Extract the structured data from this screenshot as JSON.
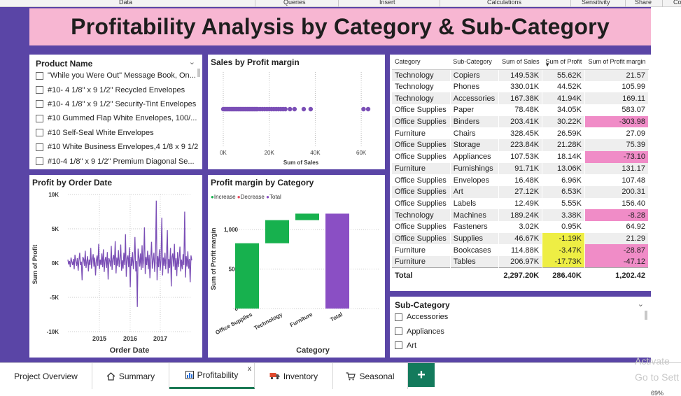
{
  "ribbon": {
    "items": [
      "Data",
      "Queries",
      "Insert",
      "Calculations",
      "Sensitivity",
      "Share",
      "Co"
    ]
  },
  "page": {
    "title": "Profitability Analysis by Category & Sub-Category"
  },
  "product_slicer": {
    "title": "Product Name",
    "items": [
      "\"While you Were Out\" Message Book, On...",
      "#10- 4 1/8\" x 9 1/2\" Recycled Envelopes",
      "#10- 4 1/8\" x 9 1/2\" Security-Tint Envelopes",
      "#10 Gummed Flap White Envelopes, 100/...",
      "#10 Self-Seal White Envelopes",
      "#10 White Business Envelopes,4 1/8 x 9 1/2",
      "#10-4 1/8\" x 9 1/2\" Premium Diagonal Se..."
    ]
  },
  "scatter_chart": {
    "title": "Sales by Profit margin",
    "xlabel": "Sum of Sales",
    "x_ticks": [
      "0K",
      "20K",
      "40K",
      "60K"
    ],
    "color": "#7b4fb6"
  },
  "line_chart": {
    "title": "Profit by Order Date",
    "xlabel": "Order Date",
    "ylabel": "Sum of Profit",
    "y_ticks": [
      "10K",
      "5K",
      "0K",
      "-5K",
      "-10K"
    ],
    "x_ticks": [
      "2015",
      "2016",
      "2017"
    ],
    "color": "#7b4fb6"
  },
  "waterfall_chart": {
    "title": "Profit margin by Category",
    "xlabel": "Category",
    "ylabel": "Sum of Profit margin",
    "y_ticks": [
      "0",
      "500",
      "1,000"
    ],
    "legend": {
      "increase": "Increase",
      "decrease": "Decrease",
      "total": "Total"
    },
    "colors": {
      "increase": "#17b14e",
      "decrease": "#e8485a",
      "total": "#8a4fc4"
    }
  },
  "table": {
    "headers": [
      "Category",
      "Sub-Category",
      "Sum of Sales",
      "Sum of Profit",
      "Sum of Profit margin"
    ],
    "rows": [
      [
        "Technology",
        "Copiers",
        "149.53K",
        "55.62K",
        "21.57"
      ],
      [
        "Technology",
        "Phones",
        "330.01K",
        "44.52K",
        "105.99"
      ],
      [
        "Technology",
        "Accessories",
        "167.38K",
        "41.94K",
        "169.11"
      ],
      [
        "Office Supplies",
        "Paper",
        "78.48K",
        "34.05K",
        "583.07"
      ],
      [
        "Office Supplies",
        "Binders",
        "203.41K",
        "30.22K",
        "-303.98"
      ],
      [
        "Furniture",
        "Chairs",
        "328.45K",
        "26.59K",
        "27.09"
      ],
      [
        "Office Supplies",
        "Storage",
        "223.84K",
        "21.28K",
        "75.39"
      ],
      [
        "Office Supplies",
        "Appliances",
        "107.53K",
        "18.14K",
        "-73.10"
      ],
      [
        "Furniture",
        "Furnishings",
        "91.71K",
        "13.06K",
        "131.17"
      ],
      [
        "Office Supplies",
        "Envelopes",
        "16.48K",
        "6.96K",
        "107.48"
      ],
      [
        "Office Supplies",
        "Art",
        "27.12K",
        "6.53K",
        "200.31"
      ],
      [
        "Office Supplies",
        "Labels",
        "12.49K",
        "5.55K",
        "156.40"
      ],
      [
        "Technology",
        "Machines",
        "189.24K",
        "3.38K",
        "-8.28"
      ],
      [
        "Office Supplies",
        "Fasteners",
        "3.02K",
        "0.95K",
        "64.92"
      ],
      [
        "Office Supplies",
        "Supplies",
        "46.67K",
        "-1.19K",
        "21.29"
      ],
      [
        "Furniture",
        "Bookcases",
        "114.88K",
        "-3.47K",
        "-28.87"
      ],
      [
        "Furniture",
        "Tables",
        "206.97K",
        "-17.73K",
        "-47.12"
      ]
    ],
    "total": [
      "Total",
      "",
      "2,297.20K",
      "286.40K",
      "1,202.42"
    ],
    "colors": {
      "negative_margin": "#f08cc7",
      "negative_profit": "#eeee44"
    }
  },
  "subcat_slicer": {
    "title": "Sub-Category",
    "items": [
      "Accessories",
      "Appliances",
      "Art"
    ]
  },
  "tabs": [
    {
      "label": "Project Overview",
      "icon": ""
    },
    {
      "label": "Summary",
      "icon": "home-icon"
    },
    {
      "label": "Profitability",
      "icon": "bar-chart-icon"
    },
    {
      "label": "Inventory",
      "icon": "truck-icon"
    },
    {
      "label": "Seasonal",
      "icon": "cart-icon"
    }
  ],
  "add_tab": "+",
  "close_tab": "x",
  "watermark": [
    "Activate",
    "Go to Sett"
  ],
  "zoom": "69%",
  "chart_data": [
    {
      "type": "scatter",
      "title": "Sales by Profit margin",
      "xlabel": "Sum of Sales",
      "xlim": [
        0,
        70
      ],
      "x_unit": "K",
      "x": [
        0,
        0.5,
        1,
        1.5,
        2,
        2.5,
        3,
        3.5,
        4,
        4.5,
        5,
        5.5,
        6,
        6.5,
        7,
        7.5,
        8,
        8.5,
        9,
        9.5,
        10,
        10.5,
        11,
        11.5,
        12,
        12.5,
        13,
        13.5,
        14,
        14.5,
        15,
        16,
        17,
        18,
        19,
        20,
        21,
        22,
        23,
        24,
        25,
        26,
        27,
        29,
        31,
        35,
        38,
        61,
        63
      ]
    },
    {
      "type": "line",
      "title": "Profit by Order Date",
      "xlabel": "Order Date",
      "ylabel": "Sum of Profit",
      "ylim": [
        -10000,
        10000
      ],
      "x_ticks": [
        "2015",
        "2016",
        "2017"
      ],
      "series": [
        {
          "values": [
            500,
            -200,
            300,
            -600,
            800,
            200,
            -300,
            600,
            -900,
            1200,
            300,
            -400,
            700,
            -1100,
            400,
            1500,
            -300,
            200,
            -2500,
            900,
            600,
            -400,
            1800,
            -700,
            300,
            1000,
            -1200,
            500,
            -300,
            2200,
            -800,
            400,
            1300,
            -500,
            800,
            -1800,
            300,
            1100,
            -400,
            2800,
            -900,
            500,
            -300,
            1400,
            -600,
            2000,
            -1300,
            400,
            900,
            -700,
            1600,
            -2400,
            700,
            300,
            -500,
            2500,
            -1000,
            600,
            1200,
            -300,
            3200,
            -1500,
            800,
            -400,
            1900,
            -600,
            500,
            2700,
            -1100,
            400,
            -800,
            1500,
            -300,
            4200,
            -2000,
            700,
            1100,
            -600,
            2300,
            -3500,
            900,
            -400,
            1600,
            -900,
            600,
            3800,
            -1200,
            300,
            -6400,
            2100,
            800,
            -500,
            1400,
            -1000,
            2600,
            -700,
            500,
            5200,
            -1600,
            900,
            -300,
            1800,
            -900,
            1200,
            -2200,
            600,
            3100,
            -800,
            400,
            1500,
            -1300,
            700,
            9100,
            -2500,
            1000,
            -600,
            2000,
            -1100,
            500,
            6600,
            -1800,
            800,
            -400,
            1500,
            -900,
            1200,
            4800,
            -1500,
            600,
            -700,
            2200,
            -3400,
            900,
            1400,
            -500,
            2800,
            -1000,
            700,
            -1900,
            1600,
            -600,
            800,
            2400,
            -1200,
            500,
            -900,
            1300,
            -300,
            7500,
            -2100,
            1000,
            -500,
            1700,
            -800,
            600,
            -2800,
            1100,
            400
          ]
        }
      ]
    },
    {
      "type": "bar",
      "title": "Profit margin by Category",
      "xlabel": "Category",
      "ylabel": "Sum of Profit margin",
      "categories": [
        "Office Supplies",
        "Technology",
        "Furniture",
        "Total"
      ],
      "values": [
        827.6,
        292.6,
        82.3,
        1202.4
      ],
      "ylim": [
        0,
        1250
      ],
      "kind": [
        "increase",
        "increase",
        "increase",
        "total"
      ]
    }
  ]
}
